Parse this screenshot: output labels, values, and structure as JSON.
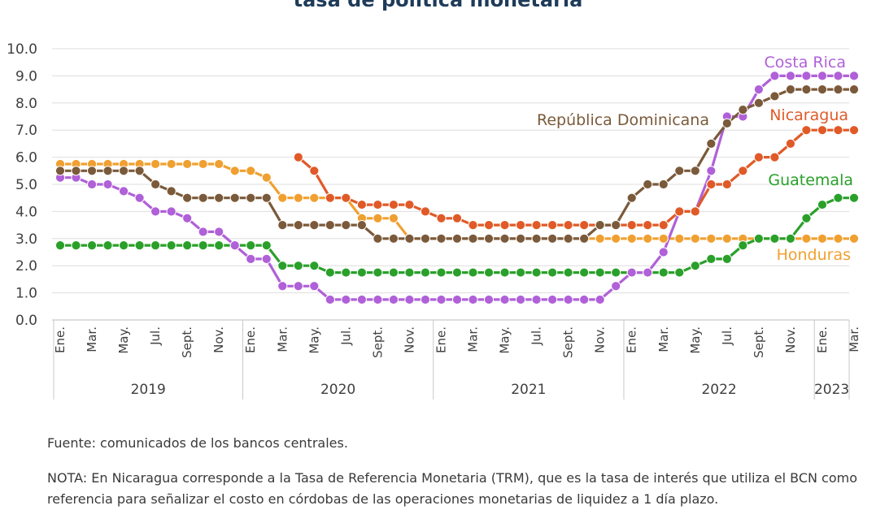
{
  "title": "tasa de política monetaria",
  "source": "Fuente: comunicados de los bancos centrales.",
  "note": "NOTA: En Nicaragua corresponde a la Tasa de Referencia Monetaria (TRM), que es la tasa de interés que utiliza el BCN como referencia para señalizar el costo en córdobas de las operaciones monetarias de liquidez a 1 día plazo.",
  "chart_data": {
    "type": "line",
    "title": "tasa de política monetaria",
    "ylim": [
      0,
      10
    ],
    "yticks": [
      "0.0",
      "1.0",
      "2.0",
      "3.0",
      "4.0",
      "5.0",
      "6.0",
      "7.0",
      "8.0",
      "9.0",
      "10.0"
    ],
    "grid": true,
    "x": [
      "2019-01",
      "2019-02",
      "2019-03",
      "2019-04",
      "2019-05",
      "2019-06",
      "2019-07",
      "2019-08",
      "2019-09",
      "2019-10",
      "2019-11",
      "2019-12",
      "2020-01",
      "2020-02",
      "2020-03",
      "2020-04",
      "2020-05",
      "2020-06",
      "2020-07",
      "2020-08",
      "2020-09",
      "2020-10",
      "2020-11",
      "2020-12",
      "2021-01",
      "2021-02",
      "2021-03",
      "2021-04",
      "2021-05",
      "2021-06",
      "2021-07",
      "2021-08",
      "2021-09",
      "2021-10",
      "2021-11",
      "2021-12",
      "2022-01",
      "2022-02",
      "2022-03",
      "2022-04",
      "2022-05",
      "2022-06",
      "2022-07",
      "2022-08",
      "2022-09",
      "2022-10",
      "2022-11",
      "2022-12",
      "2023-01",
      "2023-02",
      "2023-03"
    ],
    "month_labels": [
      "Ene.",
      "Mar.",
      "May.",
      "Jul.",
      "Sept.",
      "Nov.",
      "Ene.",
      "Mar.",
      "May.",
      "Jul.",
      "Sept.",
      "Nov.",
      "Ene.",
      "Mar.",
      "May.",
      "Jul.",
      "Sept.",
      "Nov.",
      "Ene.",
      "Mar.",
      "May.",
      "Jul.",
      "Sept.",
      "Nov.",
      "Ene.",
      "Mar."
    ],
    "years": [
      "2019",
      "2020",
      "2021",
      "2022",
      "2023"
    ],
    "series": [
      {
        "name": "Honduras",
        "color": "#f0a030",
        "values": [
          5.75,
          5.75,
          5.75,
          5.75,
          5.75,
          5.75,
          5.75,
          5.75,
          5.75,
          5.75,
          5.75,
          5.5,
          5.5,
          5.25,
          4.5,
          4.5,
          4.5,
          4.5,
          4.5,
          3.75,
          3.75,
          3.75,
          3.0,
          3.0,
          3.0,
          3.0,
          3.0,
          3.0,
          3.0,
          3.0,
          3.0,
          3.0,
          3.0,
          3.0,
          3.0,
          3.0,
          3.0,
          3.0,
          3.0,
          3.0,
          3.0,
          3.0,
          3.0,
          3.0,
          3.0,
          3.0,
          3.0,
          3.0,
          3.0,
          3.0,
          3.0
        ]
      },
      {
        "name": "Guatemala",
        "color": "#2aa02a",
        "values": [
          2.75,
          2.75,
          2.75,
          2.75,
          2.75,
          2.75,
          2.75,
          2.75,
          2.75,
          2.75,
          2.75,
          2.75,
          2.75,
          2.75,
          2.0,
          2.0,
          2.0,
          1.75,
          1.75,
          1.75,
          1.75,
          1.75,
          1.75,
          1.75,
          1.75,
          1.75,
          1.75,
          1.75,
          1.75,
          1.75,
          1.75,
          1.75,
          1.75,
          1.75,
          1.75,
          1.75,
          1.75,
          1.75,
          1.75,
          1.75,
          2.0,
          2.25,
          2.25,
          2.75,
          3.0,
          3.0,
          3.0,
          3.75,
          4.25,
          4.5,
          4.5
        ]
      },
      {
        "name": "Costa Rica",
        "color": "#b060d8",
        "values": [
          5.25,
          5.25,
          5.0,
          5.0,
          4.75,
          4.5,
          4.0,
          4.0,
          3.75,
          3.25,
          3.25,
          2.75,
          2.25,
          2.25,
          1.25,
          1.25,
          1.25,
          0.75,
          0.75,
          0.75,
          0.75,
          0.75,
          0.75,
          0.75,
          0.75,
          0.75,
          0.75,
          0.75,
          0.75,
          0.75,
          0.75,
          0.75,
          0.75,
          0.75,
          0.75,
          1.25,
          1.75,
          1.75,
          2.5,
          4.0,
          4.0,
          5.5,
          7.5,
          7.5,
          8.5,
          9.0,
          9.0,
          9.0,
          9.0,
          9.0,
          9.0
        ]
      },
      {
        "name": "Nicaragua",
        "color": "#e05a28",
        "values": [
          null,
          null,
          null,
          null,
          null,
          null,
          null,
          null,
          null,
          null,
          null,
          null,
          null,
          null,
          null,
          6.0,
          5.5,
          4.5,
          4.5,
          4.25,
          4.25,
          4.25,
          4.25,
          4.0,
          3.75,
          3.75,
          3.5,
          3.5,
          3.5,
          3.5,
          3.5,
          3.5,
          3.5,
          3.5,
          3.5,
          3.5,
          3.5,
          3.5,
          3.5,
          4.0,
          4.0,
          5.0,
          5.0,
          5.5,
          6.0,
          6.0,
          6.5,
          7.0,
          7.0,
          7.0,
          7.0
        ]
      },
      {
        "name": "República Dominicana",
        "color": "#7a5a3a",
        "values": [
          5.5,
          5.5,
          5.5,
          5.5,
          5.5,
          5.5,
          5.0,
          4.75,
          4.5,
          4.5,
          4.5,
          4.5,
          4.5,
          4.5,
          3.5,
          3.5,
          3.5,
          3.5,
          3.5,
          3.5,
          3.0,
          3.0,
          3.0,
          3.0,
          3.0,
          3.0,
          3.0,
          3.0,
          3.0,
          3.0,
          3.0,
          3.0,
          3.0,
          3.0,
          3.5,
          3.5,
          4.5,
          5.0,
          5.0,
          5.5,
          5.5,
          6.5,
          7.25,
          7.75,
          8.0,
          8.25,
          8.5,
          8.5,
          8.5,
          8.5,
          8.5
        ]
      }
    ]
  }
}
